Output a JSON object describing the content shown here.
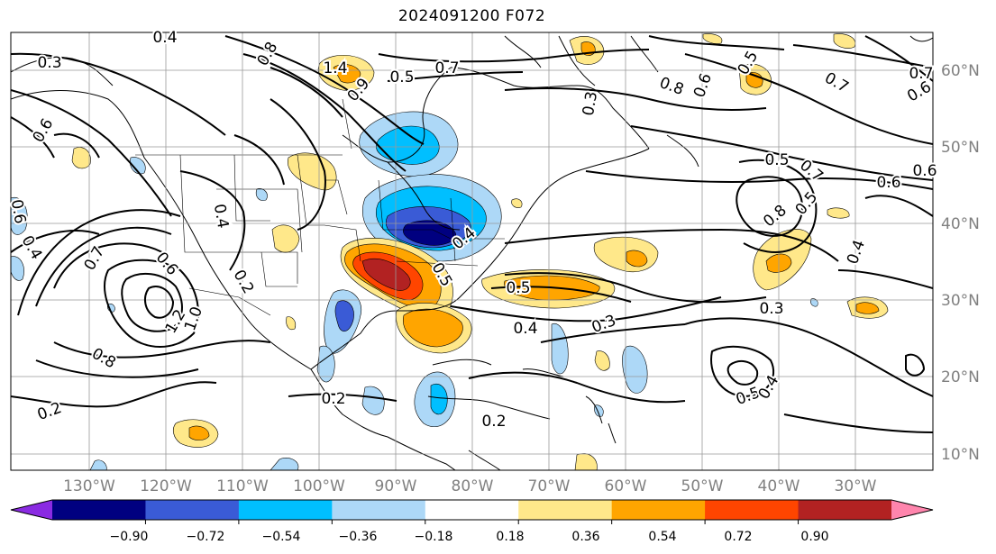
{
  "title": "2024091200 F072",
  "map": {
    "lat_labels": [
      "60°N",
      "50°N",
      "40°N",
      "30°N",
      "20°N",
      "10°N"
    ],
    "lon_labels": [
      "130°W",
      "120°W",
      "110°W",
      "100°W",
      "90°W",
      "80°W",
      "70°W",
      "60°W",
      "50°W",
      "40°W",
      "30°W"
    ],
    "contour_labels": [
      {
        "text": "0.3"
      },
      {
        "text": "0.4"
      },
      {
        "text": "0.6"
      },
      {
        "text": "1.4"
      },
      {
        "text": "0.8"
      },
      {
        "text": "0.7"
      },
      {
        "text": "0.5"
      },
      {
        "text": "0.9"
      },
      {
        "text": "0.3"
      },
      {
        "text": "0.8"
      },
      {
        "text": "0.6"
      },
      {
        "text": "0.5"
      },
      {
        "text": "0.7"
      },
      {
        "text": "0.7"
      },
      {
        "text": "0.6"
      },
      {
        "text": "0.5"
      },
      {
        "text": "0.7"
      },
      {
        "text": "0.6"
      },
      {
        "text": "0.6"
      },
      {
        "text": "0.8"
      },
      {
        "text": "0.5"
      },
      {
        "text": "0.4"
      },
      {
        "text": "0.3"
      },
      {
        "text": "0.5"
      },
      {
        "text": "0.4"
      },
      {
        "text": "0.3"
      },
      {
        "text": "0.4"
      },
      {
        "text": "0.2"
      },
      {
        "text": "0.2"
      },
      {
        "text": "0.7"
      },
      {
        "text": "0.6"
      },
      {
        "text": "1.2"
      },
      {
        "text": "1.0"
      },
      {
        "text": "0.8"
      },
      {
        "text": "0.2"
      },
      {
        "text": "0.2"
      },
      {
        "text": "0.5"
      },
      {
        "text": "0.4"
      },
      {
        "text": "0.6"
      },
      {
        "text": "0.5"
      },
      {
        "text": "0.4"
      },
      {
        "text": "0.4"
      }
    ]
  },
  "colorbar": {
    "colors": [
      "#8a2be2",
      "#000080",
      "#3a5bd6",
      "#00bfff",
      "#add8f7",
      "#ffffff",
      "#ffe88a",
      "#ffa500",
      "#ff4500",
      "#b22222",
      "#ff85ad"
    ],
    "tick_labels": [
      "−0.90",
      "−0.72",
      "−0.54",
      "−0.36",
      "−0.18",
      "0.18",
      "0.36",
      "0.54",
      "0.72",
      "0.90"
    ]
  }
}
